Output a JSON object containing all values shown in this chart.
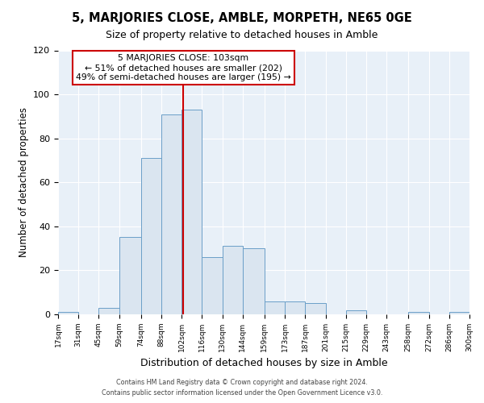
{
  "title": "5, MARJORIES CLOSE, AMBLE, MORPETH, NE65 0GE",
  "subtitle": "Size of property relative to detached houses in Amble",
  "xlabel": "Distribution of detached houses by size in Amble",
  "ylabel": "Number of detached properties",
  "bin_edges": [
    17,
    31,
    45,
    59,
    74,
    88,
    102,
    116,
    130,
    144,
    159,
    173,
    187,
    201,
    215,
    229,
    243,
    258,
    272,
    286,
    300
  ],
  "counts": [
    1,
    0,
    3,
    35,
    71,
    91,
    93,
    26,
    31,
    30,
    6,
    6,
    5,
    0,
    2,
    0,
    0,
    1,
    0,
    1
  ],
  "bar_facecolor": "#dae5f0",
  "bar_edgecolor": "#6b9fc8",
  "marker_x": 103,
  "marker_color": "#cc0000",
  "annotation_title": "5 MARJORIES CLOSE: 103sqm",
  "annotation_line1": "← 51% of detached houses are smaller (202)",
  "annotation_line2": "49% of semi-detached houses are larger (195) →",
  "annotation_box_edgecolor": "#cc0000",
  "annotation_box_facecolor": "#ffffff",
  "ylim": [
    0,
    120
  ],
  "xlim": [
    17,
    300
  ],
  "tick_labels": [
    "17sqm",
    "31sqm",
    "45sqm",
    "59sqm",
    "74sqm",
    "88sqm",
    "102sqm",
    "116sqm",
    "130sqm",
    "144sqm",
    "159sqm",
    "173sqm",
    "187sqm",
    "201sqm",
    "215sqm",
    "229sqm",
    "243sqm",
    "258sqm",
    "272sqm",
    "286sqm",
    "300sqm"
  ],
  "footer_line1": "Contains HM Land Registry data © Crown copyright and database right 2024.",
  "footer_line2": "Contains public sector information licensed under the Open Government Licence v3.0.",
  "background_color": "#e8f0f8"
}
